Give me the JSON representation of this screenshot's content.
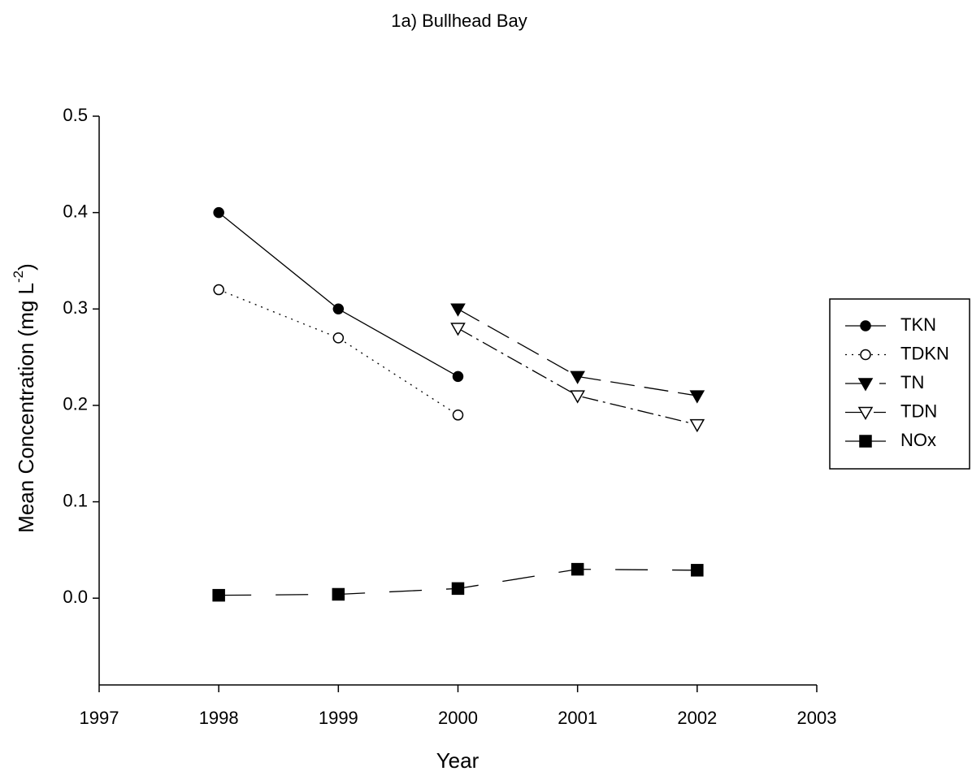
{
  "chart_data": {
    "type": "line",
    "title": "1a) Bullhead Bay",
    "xlabel": "Year",
    "ylabel": [
      "Mean Concentration (mg L",
      "-2",
      ")"
    ],
    "x": [
      1998,
      1999,
      2000,
      2001,
      2002
    ],
    "xlim": [
      1997,
      2003
    ],
    "xticks": [
      1997,
      1998,
      1999,
      2000,
      2001,
      2002,
      2003
    ],
    "ylim": [
      -0.09,
      0.5
    ],
    "yticks": [
      {
        "value": 0,
        "label": "0.0"
      },
      0.1,
      0.2,
      0.3,
      0.4,
      0.5
    ],
    "grid": false,
    "legend": "right",
    "series": [
      {
        "name": "TKN",
        "color": "#000000",
        "line_style": "solid",
        "marker": "circle",
        "filled": true,
        "values": [
          0.4,
          0.3,
          0.23,
          null,
          null
        ]
      },
      {
        "name": "TDKN",
        "color": "#000000",
        "line_style": "dotted",
        "marker": "circle",
        "filled": false,
        "values": [
          0.32,
          0.27,
          0.19,
          null,
          null
        ]
      },
      {
        "name": "TN",
        "color": "#000000",
        "line_style": "dashed",
        "marker": "triangle-down",
        "filled": true,
        "values": [
          null,
          null,
          0.3,
          0.23,
          0.21
        ]
      },
      {
        "name": "TDN",
        "color": "#000000",
        "line_style": "dashdot",
        "marker": "triangle-down",
        "filled": false,
        "values": [
          null,
          null,
          0.28,
          0.21,
          0.18
        ]
      },
      {
        "name": "NOx",
        "color": "#000000",
        "line_style": "longdash",
        "marker": "square",
        "filled": true,
        "values": [
          0.003,
          0.004,
          0.01,
          0.03,
          0.029
        ]
      }
    ]
  }
}
